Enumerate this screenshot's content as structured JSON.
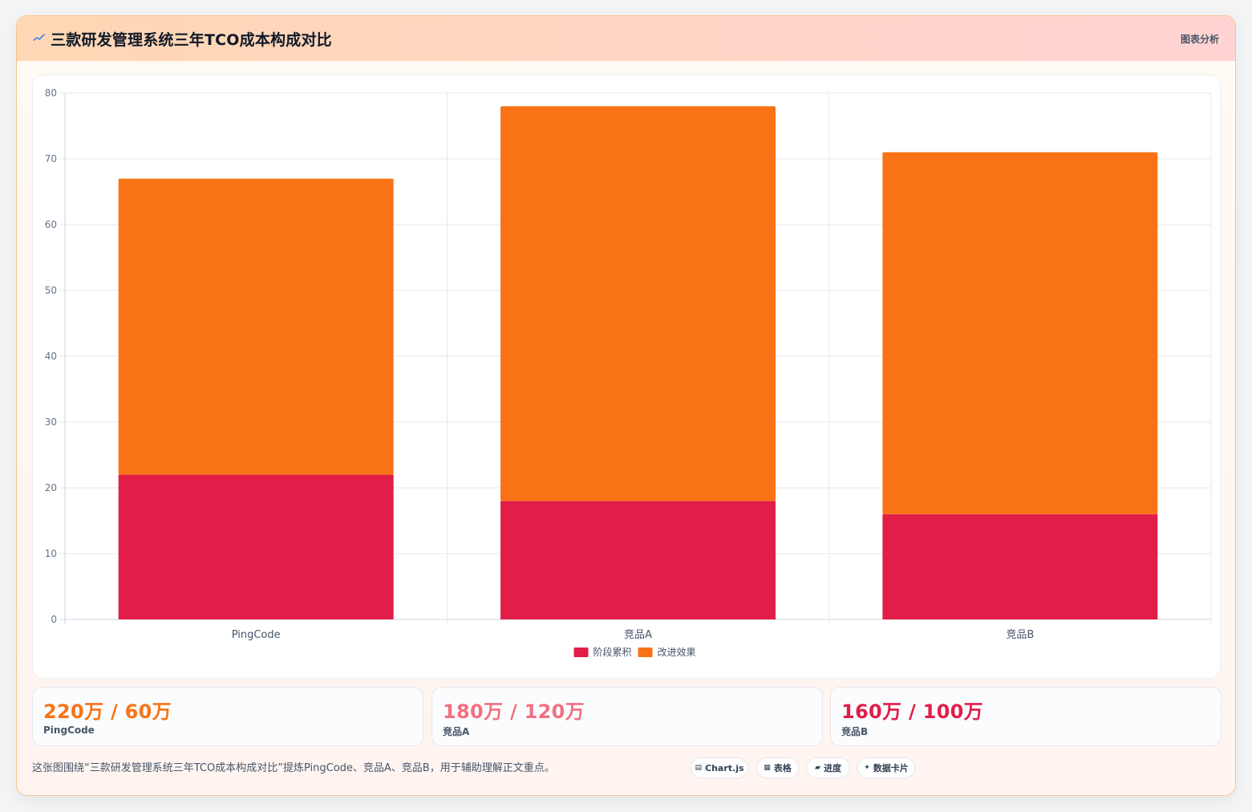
{
  "header": {
    "title": "三款研发管理系统三年TCO成本构成对比",
    "tag": "图表分析",
    "icon": "sparkline-icon"
  },
  "chart_data": {
    "type": "bar",
    "stacked": true,
    "categories": [
      "PingCode",
      "竞品A",
      "竞品B"
    ],
    "series": [
      {
        "name": "阶段累积",
        "values": [
          22,
          18,
          16
        ],
        "color": "#e11d48"
      },
      {
        "name": "改进效果",
        "values": [
          45,
          60,
          55
        ],
        "color": "#f97316"
      }
    ],
    "ylim": [
      0,
      80
    ],
    "yticks": [
      0,
      10,
      20,
      30,
      40,
      50,
      60,
      70,
      80
    ],
    "grid": true,
    "legend": "bottom-center"
  },
  "stats": [
    {
      "value": "220万 / 60万",
      "label": "PingCode",
      "color": "#f97316"
    },
    {
      "value": "180万 / 120万",
      "label": "竞品A",
      "color": "#f27080"
    },
    {
      "value": "160万 / 100万",
      "label": "竞品B",
      "color": "#e11d48"
    }
  ],
  "caption": "这张图围绕“三款研发管理系统三年TCO成本构成对比”提炼PingCode、竞品A、竞品B，用于辅助理解正文重点。",
  "chips": [
    {
      "icon": "chart-icon",
      "glyph": "▤",
      "label": "Chart.js"
    },
    {
      "icon": "table-icon",
      "glyph": "▦",
      "label": "表格"
    },
    {
      "icon": "progress-icon",
      "glyph": "▰",
      "label": "进度"
    },
    {
      "icon": "sparkle-icon",
      "glyph": "✦",
      "label": "数据卡片"
    }
  ]
}
